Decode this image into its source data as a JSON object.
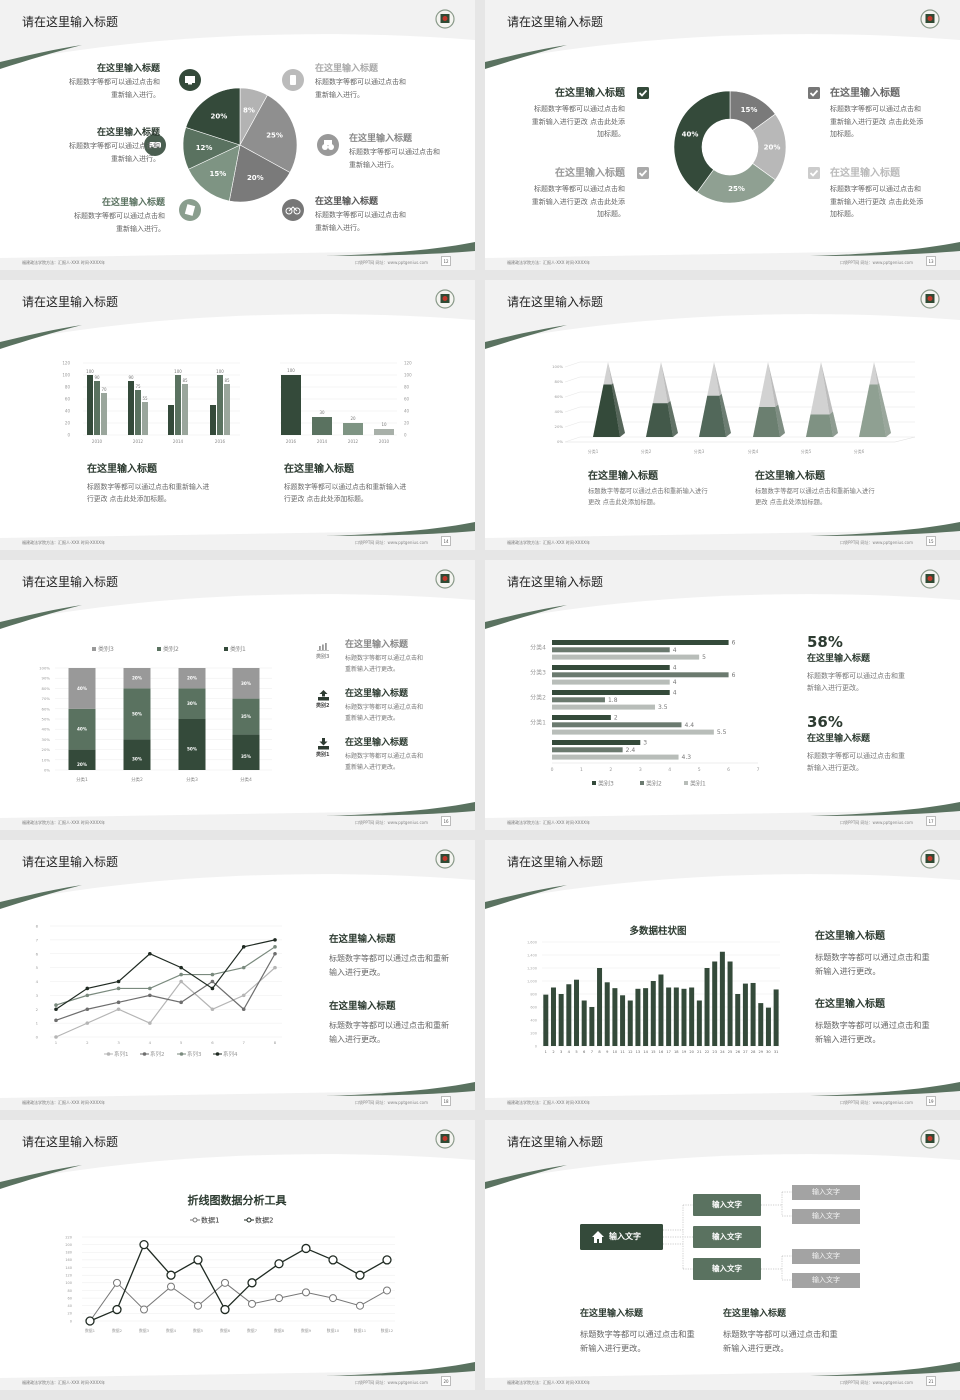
{
  "footer": {
    "left": "福建政法学院方法：汇报人·XXX  时间·XXXX年",
    "right": "口袋PPT网  网址：www.pptgenius.com"
  },
  "colors": {
    "dark": "#344a3a",
    "mid": "#5a7260",
    "light_green": "#8a9e8e",
    "gray": "#8c8c8c",
    "light_gray": "#b8b8b8"
  },
  "slides": [
    {
      "page": "12",
      "title": "请在这里输入标题",
      "items": [
        {
          "title": "在这里输入标题",
          "desc": "标题数字等都可以通过点击和重新输入进行。",
          "icon": "monitor-icon"
        },
        {
          "title": "在这里输入标题",
          "desc": "标题数字等都可以通过点击和重新输入进行。",
          "icon": "car-icon"
        },
        {
          "title": "在这里输入标题",
          "desc": "标题数字等都可以通过点击和重新输入进行。",
          "icon": "book-icon"
        },
        {
          "title": "在这里输入标题",
          "desc": "标题数字等都可以通过点击和重新输入进行。",
          "icon": "phone-icon"
        },
        {
          "title": "在这里输入标题",
          "desc": "标题数字等都可以通过点击和重新输入进行。",
          "icon": "binoculars-icon"
        },
        {
          "title": "在这里输入标题",
          "desc": "标题数字等都可以通过点击和重新输入进行。",
          "icon": "bicycle-icon"
        }
      ]
    },
    {
      "page": "13",
      "title": "请在这里输入标题",
      "items": [
        {
          "title": "在这里输入标题",
          "desc": "标题数字等都可以通过点击和重新输入进行更改 点击此处添加标题。"
        },
        {
          "title": "在这里输入标题",
          "desc": "标题数字等都可以通过点击和重新输入进行更改 点击此处添加标题。"
        },
        {
          "title": "在这里输入标题",
          "desc": "标题数字等都可以通过点击和重新输入进行更改 点击此处添加标题。"
        },
        {
          "title": "在这里输入标题",
          "desc": "标题数字等都可以通过点击和重新输入进行更改 点击此处添加标题。"
        }
      ]
    },
    {
      "page": "14",
      "title": "请在这里输入标题",
      "texts": [
        {
          "title": "在这里输入标题",
          "desc": "标题数字等都可以通过点击和重新输入进行更改 点击此处添加标题。"
        },
        {
          "title": "在这里输入标题",
          "desc": "标题数字等都可以通过点击和重新输入进行更改 点击此处添加标题。"
        }
      ]
    },
    {
      "page": "15",
      "title": "请在这里输入标题",
      "texts": [
        {
          "title": "在这里输入标题",
          "desc": "标题数字等都可以通过点击和重新输入进行更改 点击此处添加标题。"
        },
        {
          "title": "在这里输入标题",
          "desc": "标题数字等都可以通过点击和重新输入进行更改 点击此处添加标题。"
        }
      ]
    },
    {
      "page": "16",
      "title": "请在这里输入标题",
      "items": [
        {
          "icon_label": "类别3",
          "icon": "bar-chart-icon",
          "title": "在这里输入标题",
          "desc": "标题数字等都可以通过点击和重新输入进行更改。"
        },
        {
          "icon_label": "类别2",
          "icon": "upload-icon",
          "title": "在这里输入标题",
          "desc": "标题数字等都可以通过点击和重新输入进行更改。"
        },
        {
          "icon_label": "类别1",
          "icon": "download-icon",
          "title": "在这里输入标题",
          "desc": "标题数字等都可以通过点击和重新输入进行更改。"
        }
      ]
    },
    {
      "page": "17",
      "title": "请在这里输入标题",
      "stats": [
        {
          "value": "58%",
          "title": "在这里输入标题",
          "desc": "标题数字等都可以通过点击和重新输入进行更改。"
        },
        {
          "value": "36%",
          "title": "在这里输入标题",
          "desc": "标题数字等都可以通过点击和重新输入进行更改。"
        }
      ]
    },
    {
      "page": "18",
      "title": "请在这里输入标题",
      "texts": [
        {
          "title": "在这里输入标题",
          "desc": "标题数字等都可以通过点击和重新输入进行更改。"
        },
        {
          "title": "在这里输入标题",
          "desc": "标题数字等都可以通过点击和重新输入进行更改。"
        }
      ]
    },
    {
      "page": "19",
      "title": "请在这里输入标题",
      "texts": [
        {
          "title": "在这里输入标题",
          "desc": "标题数字等都可以通过点击和重新输入进行更改。"
        },
        {
          "title": "在这里输入标题",
          "desc": "标题数字等都可以通过点击和重新输入进行更改。"
        }
      ]
    },
    {
      "page": "20",
      "title": "请在这里输入标题"
    },
    {
      "page": "21",
      "title": "请在这里输入标题",
      "diagram": {
        "root": "输入文字",
        "root_icon": "home-icon",
        "mids": [
          "输入文字",
          "输入文字",
          "输入文字"
        ],
        "leaves": [
          "输入文字",
          "输入文字",
          "输入文字",
          "输入文字"
        ]
      },
      "texts": [
        {
          "title": "在这里输入标题",
          "desc": "标题数字等都可以通过点击和重新输入进行更改。"
        },
        {
          "title": "在这里输入标题",
          "desc": "标题数字等都可以通过点击和重新输入进行更改。"
        }
      ]
    }
  ],
  "chart_data": [
    {
      "type": "pie",
      "values": [
        8,
        25,
        20,
        15,
        12,
        20
      ],
      "labels": [
        "8%",
        "25%",
        "20%",
        "15%",
        "12%",
        "20%"
      ],
      "colors": [
        "#b3b3b3",
        "#8f8f8f",
        "#7a7a7a",
        "#7e9483",
        "#5a7260",
        "#344a3a"
      ]
    },
    {
      "type": "pie",
      "donut": true,
      "values": [
        15,
        20,
        25,
        40
      ],
      "labels": [
        "15%",
        "20%",
        "25%",
        "40%"
      ],
      "colors": [
        "#7a7a7a",
        "#b8b8b8",
        "#8fa092",
        "#344a3a"
      ]
    },
    {
      "type": "bar",
      "categories": [
        "2010",
        "2012",
        "2014",
        "2016"
      ],
      "series": [
        {
          "values": [
            100,
            90,
            50,
            50
          ]
        },
        {
          "values": [
            90,
            75,
            100,
            100
          ]
        },
        {
          "values": [
            70,
            55,
            85,
            85
          ]
        }
      ],
      "value_labels": [
        [
          "100",
          "90",
          "",
          ""
        ],
        [
          "90",
          "75",
          "100",
          "100"
        ],
        [
          "70",
          "55",
          "85",
          "85"
        ]
      ],
      "ylim": [
        0,
        120
      ],
      "yticks": [
        "0",
        "20",
        "40",
        "60",
        "80",
        "100",
        "120"
      ],
      "colors": [
        "#344a3a",
        "#5a7260",
        "#9aa69c"
      ]
    },
    {
      "type": "bar",
      "categories": [
        "2016",
        "2014",
        "2012",
        "2010"
      ],
      "values": [
        100,
        30,
        20,
        10
      ],
      "value_labels": [
        "100",
        "30",
        "20",
        "10"
      ],
      "ylim": [
        0,
        120
      ],
      "yticks": [
        "0",
        "20",
        "40",
        "60",
        "80",
        "100",
        "120"
      ],
      "colors": [
        "#344a3a",
        "#5a7260",
        "#7e9483",
        "#a8b0a9"
      ]
    },
    {
      "type": "bar",
      "style": "3d-pyramid",
      "categories": [
        "分类1",
        "分类2",
        "分类3",
        "分类4",
        "分类5",
        "分类6"
      ],
      "values": [
        70,
        45,
        55,
        40,
        30,
        70
      ],
      "ylim": [
        0,
        100
      ],
      "yticks": [
        "0%",
        "20%",
        "40%",
        "60%",
        "80%",
        "100%"
      ],
      "colors": [
        "#344a3a",
        "#43594a",
        "#52685a",
        "#6b7f70",
        "#7f9283",
        "#8fa092"
      ]
    },
    {
      "type": "bar",
      "stacked": true,
      "categories": [
        "分类1",
        "分类2",
        "分类3",
        "分类4"
      ],
      "series": [
        {
          "name": "类别1",
          "values": [
            20,
            30,
            50,
            35
          ],
          "labels": [
            "20%",
            "30%",
            "50%",
            "35%"
          ],
          "color": "#344a3a"
        },
        {
          "name": "类别2",
          "values": [
            40,
            50,
            30,
            35
          ],
          "labels": [
            "40%",
            "50%",
            "30%",
            "35%"
          ],
          "color": "#5a7260"
        },
        {
          "name": "类别3",
          "values": [
            40,
            20,
            20,
            30
          ],
          "labels": [
            "40%",
            "20%",
            "20%",
            "30%"
          ],
          "color": "#999999"
        }
      ],
      "legend_order": [
        "类别3",
        "类别2",
        "类别1"
      ],
      "legend": "top",
      "ylim": [
        0,
        100
      ],
      "yticks": [
        "0%",
        "10%",
        "20%",
        "30%",
        "40%",
        "50%",
        "60%",
        "70%",
        "80%",
        "90%",
        "100%"
      ]
    },
    {
      "type": "bar",
      "orientation": "horizontal",
      "categories": [
        "分类4",
        "分类3",
        "分类2",
        "分类1",
        ""
      ],
      "series": [
        {
          "name": "类别3",
          "values": [
            6,
            4,
            4,
            2,
            3
          ],
          "color": "#344a3a"
        },
        {
          "name": "类别2",
          "values": [
            4,
            6,
            1.8,
            4.4,
            2.4
          ],
          "color": "#6b7a6f"
        },
        {
          "name": "类别1",
          "values": [
            5,
            4,
            3.5,
            5.5,
            4.3
          ],
          "color": "#b8bdb9"
        }
      ],
      "xlim": [
        0,
        7
      ],
      "xticks": [
        "0",
        "1",
        "2",
        "3",
        "4",
        "5",
        "6",
        "7"
      ],
      "legend": "bottom"
    },
    {
      "type": "line",
      "x": [
        "1",
        "2",
        "3",
        "4",
        "5",
        "6",
        "7",
        "8"
      ],
      "series": [
        {
          "name": "系列1",
          "values": [
            0,
            1,
            2,
            1,
            4,
            2,
            3,
            5
          ],
          "color": "#b5b5b5"
        },
        {
          "name": "系列2",
          "values": [
            1.2,
            2,
            2.5,
            3,
            2.5,
            4,
            2,
            6
          ],
          "color": "#6e6e6e"
        },
        {
          "name": "系列3",
          "values": [
            2.3,
            3,
            3.5,
            3.5,
            4.5,
            4.5,
            5,
            6.5
          ],
          "color": "#7a8a7e"
        },
        {
          "name": "系列4",
          "values": [
            2,
            3.5,
            4,
            6,
            5,
            3.5,
            6.5,
            7
          ],
          "color": "#1f2a22"
        }
      ],
      "ylim": [
        0,
        8
      ],
      "yticks": [
        "0",
        "1",
        "2",
        "3",
        "4",
        "5",
        "6",
        "7",
        "8"
      ],
      "legend": "bottom"
    },
    {
      "type": "bar",
      "title": "多数据柱状图",
      "categories": [
        "1",
        "2",
        "3",
        "4",
        "5",
        "6",
        "7",
        "8",
        "9",
        "10",
        "11",
        "12",
        "13",
        "14",
        "15",
        "16",
        "17",
        "18",
        "19",
        "20",
        "21",
        "22",
        "23",
        "24",
        "25",
        "26",
        "27",
        "28",
        "29",
        "30",
        "31"
      ],
      "values": [
        790,
        900,
        800,
        950,
        1020,
        700,
        600,
        1200,
        980,
        890,
        780,
        700,
        880,
        890,
        1000,
        1100,
        900,
        900,
        880,
        900,
        700,
        1200,
        1300,
        1450,
        1300,
        800,
        960,
        970,
        660,
        590,
        870
      ],
      "ylim": [
        0,
        1600
      ],
      "yticks": [
        "0",
        "200",
        "400",
        "600",
        "800",
        "1,000",
        "1,200",
        "1,400",
        "1,600"
      ],
      "color": "#344a3a"
    },
    {
      "type": "line",
      "title": "折线图数据分析工具",
      "x": [
        "数据1",
        "数据2",
        "数据3",
        "数据4",
        "数据5",
        "数据6",
        "数据7",
        "数据8",
        "数据9",
        "数据10",
        "数据11",
        "数据12"
      ],
      "series": [
        {
          "name": "数据1",
          "values": [
            0,
            100,
            30,
            90,
            40,
            100,
            45,
            60,
            75,
            60,
            40,
            80
          ],
          "color": "#777777"
        },
        {
          "name": "数据2",
          "values": [
            0,
            30,
            200,
            120,
            160,
            30,
            100,
            150,
            190,
            160,
            120,
            160
          ],
          "color": "#1f2a22"
        }
      ],
      "ylim": [
        0,
        220
      ],
      "yticks": [
        "0",
        "20",
        "40",
        "60",
        "80",
        "100",
        "120",
        "140",
        "160",
        "180",
        "200",
        "220"
      ],
      "legend": "top"
    }
  ]
}
